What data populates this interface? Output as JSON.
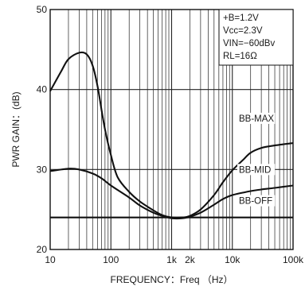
{
  "chart_data": {
    "type": "line",
    "xlabel": "FREQUENCY：Freq （Hz）",
    "ylabel": "PWR GAIN：(dB)",
    "x_scale": "log",
    "xlim": [
      10,
      100000
    ],
    "ylim": [
      20,
      50
    ],
    "x_tick_labels": [
      {
        "value": 10,
        "label": "10"
      },
      {
        "value": 100,
        "label": "100"
      },
      {
        "value": 1000,
        "label": "1k"
      },
      {
        "value": 2000,
        "label": "2k"
      },
      {
        "value": 10000,
        "label": "10k"
      },
      {
        "value": 100000,
        "label": "100k"
      }
    ],
    "y_ticks": [
      20,
      30,
      40,
      50
    ],
    "grid": true,
    "conditions": [
      "+B=1.2V",
      "Vcc=2.3V",
      "VIN=−60dBv",
      "RL=16Ω"
    ],
    "series": [
      {
        "name": "BB-MAX",
        "x": [
          10,
          15,
          20,
          30,
          40,
          50,
          60,
          70,
          80,
          100,
          130,
          200,
          300,
          500,
          700,
          1000,
          1500,
          2000,
          3000,
          5000,
          7000,
          10000,
          15000,
          20000,
          30000,
          50000,
          100000
        ],
        "y": [
          39.8,
          42.2,
          43.8,
          44.6,
          44.4,
          43.0,
          40.5,
          37.5,
          35.0,
          31.8,
          29.0,
          27.2,
          26.0,
          24.9,
          24.3,
          24.0,
          24.0,
          24.2,
          25.0,
          26.8,
          28.4,
          29.9,
          31.2,
          32.1,
          32.7,
          33.0,
          33.3
        ]
      },
      {
        "name": "BB-MID",
        "x": [
          10,
          20,
          30,
          50,
          70,
          100,
          200,
          300,
          500,
          700,
          1000,
          1500,
          2000,
          3000,
          5000,
          7000,
          10000,
          20000,
          30000,
          50000,
          100000
        ],
        "y": [
          29.8,
          30.1,
          30.0,
          29.5,
          28.9,
          28.0,
          26.5,
          25.5,
          24.6,
          24.2,
          23.9,
          23.9,
          24.1,
          24.6,
          25.6,
          26.3,
          26.8,
          27.3,
          27.5,
          27.7,
          28.0
        ]
      },
      {
        "name": "BB-OFF",
        "x": [
          10,
          100000
        ],
        "y": [
          24.0,
          24.0
        ]
      }
    ]
  }
}
